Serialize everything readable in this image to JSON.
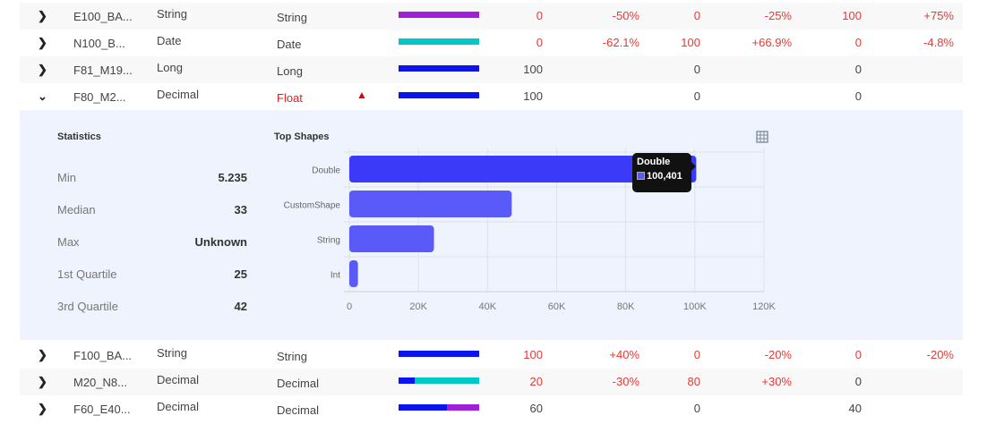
{
  "rows_top": [
    {
      "name": "E100_BA...",
      "type": "String",
      "inferred": "String",
      "inferred_error": false,
      "warning": false,
      "bar": [
        [
          "#a020d8",
          100
        ]
      ],
      "values": [
        {
          "v": "0",
          "red": true
        },
        {
          "v": "-50%",
          "red": true
        },
        {
          "v": "0",
          "red": true
        },
        {
          "v": "-25%",
          "red": true
        },
        {
          "v": "100",
          "red": true
        },
        {
          "v": "+75%",
          "red": true
        }
      ],
      "expanded": false
    },
    {
      "name": "N100_B...",
      "type": "Date",
      "inferred": "Date",
      "inferred_error": false,
      "warning": false,
      "bar": [
        [
          "#00c8c8",
          100
        ]
      ],
      "values": [
        {
          "v": "0",
          "red": true
        },
        {
          "v": "-62.1%",
          "red": true
        },
        {
          "v": "100",
          "red": true
        },
        {
          "v": "+66.9%",
          "red": true
        },
        {
          "v": "0",
          "red": true
        },
        {
          "v": "-4.8%",
          "red": true
        }
      ],
      "expanded": false
    },
    {
      "name": "F81_M19...",
      "type": "Long",
      "inferred": "Long",
      "inferred_error": false,
      "warning": false,
      "bar": [
        [
          "#0a14f0",
          100
        ]
      ],
      "values": [
        {
          "v": "100",
          "red": false
        },
        {
          "v": "",
          "red": false
        },
        {
          "v": "0",
          "red": false
        },
        {
          "v": "",
          "red": false
        },
        {
          "v": "0",
          "red": false
        },
        {
          "v": "",
          "red": false
        }
      ],
      "expanded": false
    },
    {
      "name": "F80_M2...",
      "type": "Decimal",
      "inferred": "Float",
      "inferred_error": true,
      "warning": true,
      "bar": [
        [
          "#0a14f0",
          100
        ]
      ],
      "values": [
        {
          "v": "100",
          "red": false
        },
        {
          "v": "",
          "red": false
        },
        {
          "v": "0",
          "red": false
        },
        {
          "v": "",
          "red": false
        },
        {
          "v": "0",
          "red": false
        },
        {
          "v": "",
          "red": false
        }
      ],
      "expanded": true
    }
  ],
  "rows_bottom": [
    {
      "name": "F100_BA...",
      "type": "String",
      "inferred": "String",
      "bar": [
        [
          "#0a14f0",
          100
        ]
      ],
      "values": [
        {
          "v": "100",
          "red": true
        },
        {
          "v": "+40%",
          "red": true
        },
        {
          "v": "0",
          "red": true
        },
        {
          "v": "-20%",
          "red": true
        },
        {
          "v": "0",
          "red": true
        },
        {
          "v": "-20%",
          "red": true
        }
      ]
    },
    {
      "name": "M20_N8...",
      "type": "Decimal",
      "inferred": "Decimal",
      "bar": [
        [
          "#0a14f0",
          20
        ],
        [
          "#00c8c8",
          80
        ]
      ],
      "values": [
        {
          "v": "20",
          "red": true
        },
        {
          "v": "-30%",
          "red": true
        },
        {
          "v": "80",
          "red": true
        },
        {
          "v": "+30%",
          "red": true
        },
        {
          "v": "0",
          "red": false
        },
        {
          "v": "",
          "red": false
        }
      ]
    },
    {
      "name": "F60_E40...",
      "type": "Decimal",
      "inferred": "Decimal",
      "bar": [
        [
          "#0a14f0",
          60
        ],
        [
          "#a020d8",
          40
        ]
      ],
      "values": [
        {
          "v": "60",
          "red": false
        },
        {
          "v": "",
          "red": false
        },
        {
          "v": "0",
          "red": false
        },
        {
          "v": "",
          "red": false
        },
        {
          "v": "40",
          "red": false
        },
        {
          "v": "",
          "red": false
        }
      ]
    }
  ],
  "statistics": {
    "title": "Statistics",
    "items": [
      {
        "label": "Min",
        "value": "5.235"
      },
      {
        "label": "Median",
        "value": "33"
      },
      {
        "label": "Max",
        "value": "Unknown"
      },
      {
        "label": "1st Quartile",
        "value": "25"
      },
      {
        "label": "3rd Quartile",
        "value": "42"
      }
    ]
  },
  "table_icon": "grid-table-icon",
  "chart_data": {
    "type": "bar",
    "orientation": "horizontal",
    "title": "Top Shapes",
    "categories": [
      "Double",
      "CustomShape",
      "String",
      "Int"
    ],
    "values": [
      100401,
      47000,
      24500,
      2500
    ],
    "xlim": [
      0,
      120000
    ],
    "xticks": [
      "0",
      "20K",
      "40K",
      "60K",
      "80K",
      "100K",
      "120K"
    ],
    "grid": true,
    "colors": [
      "#3a3af8",
      "#5a5af8",
      "#5a5af8",
      "#5a5af8"
    ],
    "tooltip": {
      "category": "Double",
      "value": "100,401"
    }
  }
}
